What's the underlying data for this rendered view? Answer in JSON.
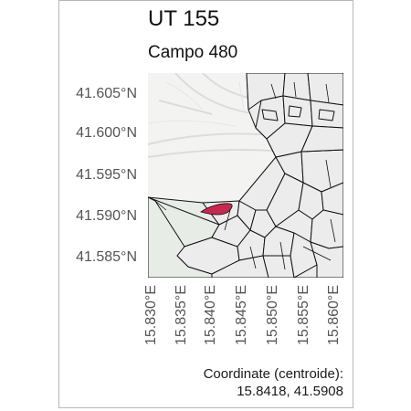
{
  "header": {
    "title": "UT 155",
    "subtitle": "Campo 480"
  },
  "axes": {
    "y_ticks": [
      "41.605°N",
      "41.600°N",
      "41.595°N",
      "41.590°N",
      "41.585°N"
    ],
    "x_ticks": [
      "15.830°E",
      "15.835°E",
      "15.840°E",
      "15.845°E",
      "15.850°E",
      "15.855°E",
      "15.860°E"
    ]
  },
  "caption": {
    "line1": "Coordinate (centroide):",
    "line2": "15.8418, 41.5908"
  },
  "colors": {
    "highlight_parcel": "#c8284f",
    "parcel_fill": "#ececec",
    "parcel_stroke": "#111111",
    "basemap": "#f3f4f1",
    "field_green": "#e6ede4"
  }
}
